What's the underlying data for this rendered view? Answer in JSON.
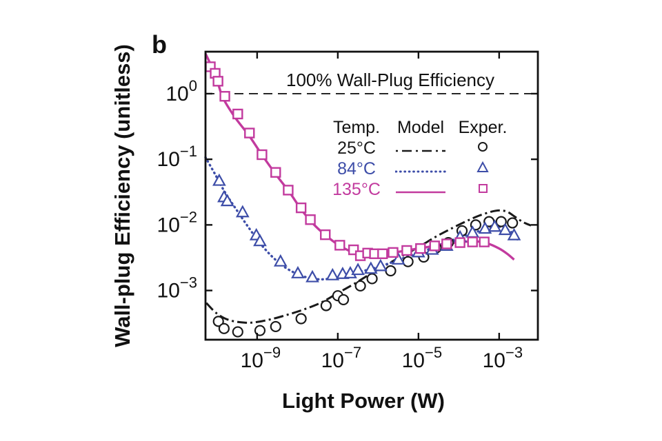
{
  "figure": {
    "panel_label": "b",
    "ylabel": "Wall-plug Efficiency (unitless)",
    "xlabel": "Light Power (W)",
    "annotation": "100% Wall-Plug Efficiency"
  },
  "legend": {
    "headers": [
      "Temp.",
      "Model",
      "Exper."
    ],
    "rows": [
      {
        "temp": "25°C",
        "color": "#1a1a1a",
        "line": "dashdot",
        "marker": "circle"
      },
      {
        "temp": "84°C",
        "color": "#3d4da8",
        "line": "dotted",
        "marker": "triangle"
      },
      {
        "temp": "135°C",
        "color": "#c23a9e",
        "line": "solid",
        "marker": "square"
      }
    ]
  },
  "chart_data": {
    "type": "line",
    "title": "",
    "xlabel": "Light Power (W)",
    "ylabel": "Wall-plug Efficiency (unitless)",
    "x_axis": {
      "scale": "log",
      "ticks_log10": [
        -9,
        -7,
        -5,
        -3
      ],
      "range_log10": [
        -10.28,
        -2.04
      ]
    },
    "y_axis": {
      "scale": "log",
      "ticks_log10": [
        0,
        -1,
        -2,
        -3
      ],
      "range_log10": [
        -3.75,
        0.64
      ]
    },
    "grid": false,
    "legend_position": "upper-center-inside",
    "reference_line": {
      "y_log10": 0,
      "style": "dashed",
      "color": "#1a1a1a",
      "label": "100% Wall-Plug Efficiency"
    },
    "series": [
      {
        "id": "model-25c",
        "name": "25°C model",
        "role": "model",
        "style": "dashdot",
        "color": "#1a1a1a",
        "points_log10": [
          [
            -10.26,
            -3.19
          ],
          [
            -10.0,
            -3.35
          ],
          [
            -9.7,
            -3.45
          ],
          [
            -9.3,
            -3.49
          ],
          [
            -9.0,
            -3.48
          ],
          [
            -8.6,
            -3.43
          ],
          [
            -8.2,
            -3.36
          ],
          [
            -7.8,
            -3.28
          ],
          [
            -7.4,
            -3.18
          ],
          [
            -7.0,
            -3.04
          ],
          [
            -6.6,
            -2.9
          ],
          [
            -6.2,
            -2.75
          ],
          [
            -5.8,
            -2.61
          ],
          [
            -5.4,
            -2.47
          ],
          [
            -5.0,
            -2.34
          ],
          [
            -4.6,
            -2.19
          ],
          [
            -4.2,
            -2.06
          ],
          [
            -3.8,
            -1.94
          ],
          [
            -3.5,
            -1.86
          ],
          [
            -3.2,
            -1.8
          ],
          [
            -3.0,
            -1.78
          ],
          [
            -2.8,
            -1.8
          ],
          [
            -2.6,
            -1.88
          ],
          [
            -2.4,
            -1.96
          ],
          [
            -2.21,
            -2.01
          ]
        ]
      },
      {
        "id": "model-84c",
        "name": "84°C model",
        "role": "model",
        "style": "dotted",
        "color": "#3d4da8",
        "points_log10": [
          [
            -10.28,
            -0.97
          ],
          [
            -10.05,
            -1.22
          ],
          [
            -9.8,
            -1.5
          ],
          [
            -9.5,
            -1.78
          ],
          [
            -9.2,
            -2.05
          ],
          [
            -8.9,
            -2.3
          ],
          [
            -8.6,
            -2.5
          ],
          [
            -8.3,
            -2.65
          ],
          [
            -8.0,
            -2.75
          ],
          [
            -7.7,
            -2.81
          ],
          [
            -7.4,
            -2.83
          ],
          [
            -7.1,
            -2.81
          ],
          [
            -6.8,
            -2.77
          ],
          [
            -6.5,
            -2.72
          ],
          [
            -6.1,
            -2.66
          ],
          [
            -5.7,
            -2.58
          ],
          [
            -5.3,
            -2.49
          ],
          [
            -4.9,
            -2.41
          ],
          [
            -4.5,
            -2.31
          ],
          [
            -4.1,
            -2.22
          ],
          [
            -3.7,
            -2.13
          ],
          [
            -3.4,
            -2.08
          ],
          [
            -3.1,
            -2.03
          ],
          [
            -2.9,
            -2.04
          ],
          [
            -2.7,
            -2.11
          ],
          [
            -2.52,
            -2.24
          ]
        ]
      },
      {
        "id": "model-135c",
        "name": "135°C model",
        "role": "model",
        "style": "solid",
        "color": "#c23a9e",
        "points_log10": [
          [
            -10.28,
            0.61
          ],
          [
            -10.15,
            0.44
          ],
          [
            -10.0,
            0.22
          ],
          [
            -9.85,
            -0.06
          ],
          [
            -9.55,
            -0.36
          ],
          [
            -9.2,
            -0.64
          ],
          [
            -8.85,
            -0.96
          ],
          [
            -8.5,
            -1.26
          ],
          [
            -8.2,
            -1.5
          ],
          [
            -7.9,
            -1.77
          ],
          [
            -7.6,
            -1.99
          ],
          [
            -7.3,
            -2.16
          ],
          [
            -7.0,
            -2.3
          ],
          [
            -6.7,
            -2.4
          ],
          [
            -6.4,
            -2.46
          ],
          [
            -6.1,
            -2.46
          ],
          [
            -5.8,
            -2.44
          ],
          [
            -5.3,
            -2.39
          ],
          [
            -4.9,
            -2.35
          ],
          [
            -4.6,
            -2.32
          ],
          [
            -4.2,
            -2.28
          ],
          [
            -3.9,
            -2.26
          ],
          [
            -3.6,
            -2.25
          ],
          [
            -3.3,
            -2.28
          ],
          [
            -3.0,
            -2.36
          ],
          [
            -2.8,
            -2.44
          ],
          [
            -2.63,
            -2.53
          ]
        ]
      },
      {
        "id": "exper-25c",
        "name": "25°C experiment",
        "role": "experiment",
        "marker": "circle",
        "color": "#1a1a1a",
        "points_log10": [
          [
            -9.96,
            -3.47
          ],
          [
            -9.82,
            -3.58
          ],
          [
            -9.48,
            -3.63
          ],
          [
            -8.93,
            -3.61
          ],
          [
            -8.54,
            -3.55
          ],
          [
            -7.91,
            -3.43
          ],
          [
            -7.29,
            -3.23
          ],
          [
            -7.0,
            -3.08
          ],
          [
            -6.86,
            -3.14
          ],
          [
            -6.44,
            -2.93
          ],
          [
            -6.15,
            -2.82
          ],
          [
            -5.69,
            -2.7
          ],
          [
            -5.26,
            -2.56
          ],
          [
            -4.87,
            -2.49
          ],
          [
            -4.56,
            -2.35
          ],
          [
            -4.26,
            -2.27
          ],
          [
            -3.92,
            -2.09
          ],
          [
            -3.58,
            -2.0
          ],
          [
            -3.25,
            -1.95
          ],
          [
            -2.95,
            -1.95
          ],
          [
            -2.67,
            -1.97
          ]
        ]
      },
      {
        "id": "exper-84c",
        "name": "84°C experiment",
        "role": "experiment",
        "marker": "triangle",
        "color": "#3d4da8",
        "points_log10": [
          [
            -9.94,
            -1.33
          ],
          [
            -9.82,
            -1.58
          ],
          [
            -9.74,
            -1.64
          ],
          [
            -9.36,
            -1.81
          ],
          [
            -9.02,
            -2.16
          ],
          [
            -8.93,
            -2.25
          ],
          [
            -8.42,
            -2.56
          ],
          [
            -7.99,
            -2.74
          ],
          [
            -7.63,
            -2.8
          ],
          [
            -7.13,
            -2.77
          ],
          [
            -6.88,
            -2.75
          ],
          [
            -6.69,
            -2.74
          ],
          [
            -6.5,
            -2.69
          ],
          [
            -6.18,
            -2.67
          ],
          [
            -5.94,
            -2.63
          ],
          [
            -5.5,
            -2.53
          ],
          [
            -5.0,
            -2.42
          ],
          [
            -4.66,
            -2.38
          ],
          [
            -4.3,
            -2.32
          ],
          [
            -3.97,
            -2.19
          ],
          [
            -3.66,
            -2.12
          ],
          [
            -3.35,
            -2.06
          ],
          [
            -3.11,
            -2.03
          ],
          [
            -2.85,
            -2.08
          ],
          [
            -2.63,
            -2.16
          ]
        ]
      },
      {
        "id": "exper-135c",
        "name": "135°C experiment",
        "role": "experiment",
        "marker": "square",
        "color": "#c23a9e",
        "points_log10": [
          [
            -10.16,
            0.41
          ],
          [
            -10.04,
            0.31
          ],
          [
            -9.97,
            0.19
          ],
          [
            -9.8,
            -0.04
          ],
          [
            -9.48,
            -0.31
          ],
          [
            -9.19,
            -0.6
          ],
          [
            -8.88,
            -0.93
          ],
          [
            -8.54,
            -1.2
          ],
          [
            -8.23,
            -1.47
          ],
          [
            -7.91,
            -1.74
          ],
          [
            -7.68,
            -1.92
          ],
          [
            -7.31,
            -2.15
          ],
          [
            -6.95,
            -2.31
          ],
          [
            -6.61,
            -2.38
          ],
          [
            -6.44,
            -2.47
          ],
          [
            -6.26,
            -2.43
          ],
          [
            -6.09,
            -2.44
          ],
          [
            -5.89,
            -2.44
          ],
          [
            -5.63,
            -2.42
          ],
          [
            -5.29,
            -2.39
          ],
          [
            -4.95,
            -2.36
          ],
          [
            -4.6,
            -2.32
          ],
          [
            -4.3,
            -2.29
          ],
          [
            -3.97,
            -2.27
          ],
          [
            -3.66,
            -2.26
          ],
          [
            -3.37,
            -2.26
          ]
        ]
      }
    ]
  }
}
